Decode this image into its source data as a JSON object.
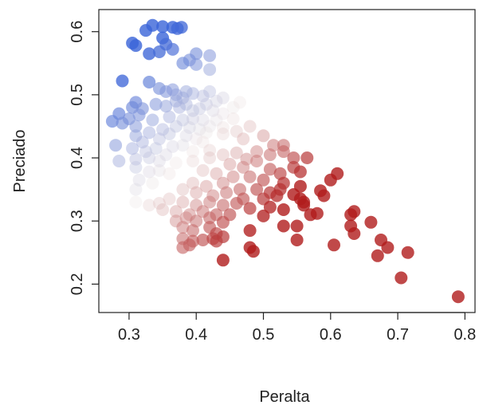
{
  "chart_data": {
    "type": "scatter",
    "xlabel": "Peralta",
    "ylabel": "Preciado",
    "xlim": [
      0.255,
      0.815
    ],
    "ylim": [
      0.155,
      0.635
    ],
    "x_ticks": [
      0.3,
      0.4,
      0.5,
      0.6,
      0.7,
      0.8
    ],
    "y_ticks": [
      0.2,
      0.3,
      0.4,
      0.5,
      0.6
    ],
    "x_tick_labels": [
      "0.3",
      "0.4",
      "0.5",
      "0.6",
      "0.7",
      "0.8"
    ],
    "y_tick_labels": [
      "0.2",
      "0.3",
      "0.4",
      "0.5",
      "0.6"
    ],
    "grid": false,
    "color_low": "#3a64d8",
    "color_high": "#b01c1c",
    "color_mid": "#e8dede",
    "points": [
      [
        0.335,
        0.61
      ],
      [
        0.35,
        0.608
      ],
      [
        0.365,
        0.607
      ],
      [
        0.372,
        0.605
      ],
      [
        0.378,
        0.607
      ],
      [
        0.325,
        0.602
      ],
      [
        0.35,
        0.59
      ],
      [
        0.355,
        0.58
      ],
      [
        0.305,
        0.582
      ],
      [
        0.31,
        0.578
      ],
      [
        0.33,
        0.565
      ],
      [
        0.345,
        0.568
      ],
      [
        0.365,
        0.572
      ],
      [
        0.4,
        0.565
      ],
      [
        0.42,
        0.562
      ],
      [
        0.39,
        0.555
      ],
      [
        0.4,
        0.548
      ],
      [
        0.42,
        0.54
      ],
      [
        0.38,
        0.55
      ],
      [
        0.29,
        0.522
      ],
      [
        0.33,
        0.52
      ],
      [
        0.345,
        0.51
      ],
      [
        0.355,
        0.505
      ],
      [
        0.365,
        0.508
      ],
      [
        0.37,
        0.5
      ],
      [
        0.38,
        0.495
      ],
      [
        0.385,
        0.505
      ],
      [
        0.395,
        0.502
      ],
      [
        0.41,
        0.498
      ],
      [
        0.42,
        0.505
      ],
      [
        0.43,
        0.49
      ],
      [
        0.44,
        0.495
      ],
      [
        0.31,
        0.488
      ],
      [
        0.305,
        0.48
      ],
      [
        0.32,
        0.478
      ],
      [
        0.34,
        0.485
      ],
      [
        0.355,
        0.482
      ],
      [
        0.37,
        0.49
      ],
      [
        0.375,
        0.48
      ],
      [
        0.385,
        0.485
      ],
      [
        0.395,
        0.475
      ],
      [
        0.405,
        0.478
      ],
      [
        0.415,
        0.485
      ],
      [
        0.425,
        0.475
      ],
      [
        0.44,
        0.47
      ],
      [
        0.455,
        0.48
      ],
      [
        0.465,
        0.488
      ],
      [
        0.285,
        0.47
      ],
      [
        0.3,
        0.462
      ],
      [
        0.315,
        0.468
      ],
      [
        0.335,
        0.46
      ],
      [
        0.36,
        0.465
      ],
      [
        0.38,
        0.46
      ],
      [
        0.395,
        0.462
      ],
      [
        0.41,
        0.46
      ],
      [
        0.43,
        0.46
      ],
      [
        0.455,
        0.462
      ],
      [
        0.275,
        0.458
      ],
      [
        0.29,
        0.455
      ],
      [
        0.31,
        0.45
      ],
      [
        0.33,
        0.44
      ],
      [
        0.35,
        0.445
      ],
      [
        0.37,
        0.45
      ],
      [
        0.39,
        0.448
      ],
      [
        0.405,
        0.445
      ],
      [
        0.42,
        0.45
      ],
      [
        0.44,
        0.448
      ],
      [
        0.31,
        0.435
      ],
      [
        0.32,
        0.425
      ],
      [
        0.345,
        0.43
      ],
      [
        0.36,
        0.438
      ],
      [
        0.385,
        0.435
      ],
      [
        0.4,
        0.43
      ],
      [
        0.415,
        0.44
      ],
      [
        0.28,
        0.42
      ],
      [
        0.305,
        0.415
      ],
      [
        0.325,
        0.41
      ],
      [
        0.34,
        0.415
      ],
      [
        0.365,
        0.418
      ],
      [
        0.38,
        0.42
      ],
      [
        0.395,
        0.41
      ],
      [
        0.41,
        0.425
      ],
      [
        0.285,
        0.395
      ],
      [
        0.31,
        0.398
      ],
      [
        0.33,
        0.4
      ],
      [
        0.345,
        0.395
      ],
      [
        0.355,
        0.405
      ],
      [
        0.37,
        0.392
      ],
      [
        0.395,
        0.395
      ],
      [
        0.31,
        0.385
      ],
      [
        0.33,
        0.378
      ],
      [
        0.345,
        0.38
      ],
      [
        0.36,
        0.375
      ],
      [
        0.315,
        0.365
      ],
      [
        0.335,
        0.36
      ],
      [
        0.31,
        0.35
      ],
      [
        0.31,
        0.33
      ],
      [
        0.33,
        0.325
      ],
      [
        0.345,
        0.328
      ],
      [
        0.48,
        0.45
      ],
      [
        0.44,
        0.438
      ],
      [
        0.46,
        0.442
      ],
      [
        0.47,
        0.43
      ],
      [
        0.5,
        0.435
      ],
      [
        0.515,
        0.42
      ],
      [
        0.53,
        0.42
      ],
      [
        0.49,
        0.41
      ],
      [
        0.51,
        0.405
      ],
      [
        0.53,
        0.41
      ],
      [
        0.545,
        0.4
      ],
      [
        0.565,
        0.4
      ],
      [
        0.42,
        0.412
      ],
      [
        0.44,
        0.405
      ],
      [
        0.46,
        0.408
      ],
      [
        0.475,
        0.398
      ],
      [
        0.42,
        0.4
      ],
      [
        0.45,
        0.39
      ],
      [
        0.47,
        0.385
      ],
      [
        0.49,
        0.395
      ],
      [
        0.51,
        0.382
      ],
      [
        0.525,
        0.375
      ],
      [
        0.545,
        0.385
      ],
      [
        0.555,
        0.378
      ],
      [
        0.41,
        0.38
      ],
      [
        0.43,
        0.375
      ],
      [
        0.455,
        0.37
      ],
      [
        0.48,
        0.37
      ],
      [
        0.5,
        0.365
      ],
      [
        0.53,
        0.36
      ],
      [
        0.555,
        0.355
      ],
      [
        0.61,
        0.375
      ],
      [
        0.6,
        0.365
      ],
      [
        0.395,
        0.36
      ],
      [
        0.415,
        0.355
      ],
      [
        0.44,
        0.36
      ],
      [
        0.465,
        0.35
      ],
      [
        0.49,
        0.35
      ],
      [
        0.51,
        0.345
      ],
      [
        0.525,
        0.35
      ],
      [
        0.545,
        0.342
      ],
      [
        0.585,
        0.348
      ],
      [
        0.38,
        0.35
      ],
      [
        0.4,
        0.345
      ],
      [
        0.425,
        0.34
      ],
      [
        0.445,
        0.345
      ],
      [
        0.47,
        0.335
      ],
      [
        0.5,
        0.335
      ],
      [
        0.52,
        0.34
      ],
      [
        0.555,
        0.335
      ],
      [
        0.56,
        0.33
      ],
      [
        0.59,
        0.34
      ],
      [
        0.36,
        0.335
      ],
      [
        0.38,
        0.33
      ],
      [
        0.4,
        0.325
      ],
      [
        0.42,
        0.33
      ],
      [
        0.44,
        0.325
      ],
      [
        0.46,
        0.328
      ],
      [
        0.48,
        0.32
      ],
      [
        0.51,
        0.322
      ],
      [
        0.53,
        0.318
      ],
      [
        0.56,
        0.325
      ],
      [
        0.57,
        0.31
      ],
      [
        0.58,
        0.312
      ],
      [
        0.35,
        0.318
      ],
      [
        0.37,
        0.315
      ],
      [
        0.39,
        0.31
      ],
      [
        0.41,
        0.315
      ],
      [
        0.43,
        0.31
      ],
      [
        0.45,
        0.31
      ],
      [
        0.5,
        0.308
      ],
      [
        0.37,
        0.3
      ],
      [
        0.385,
        0.305
      ],
      [
        0.4,
        0.3
      ],
      [
        0.42,
        0.305
      ],
      [
        0.44,
        0.298
      ],
      [
        0.55,
        0.292
      ],
      [
        0.53,
        0.292
      ],
      [
        0.48,
        0.285
      ],
      [
        0.38,
        0.29
      ],
      [
        0.395,
        0.285
      ],
      [
        0.42,
        0.29
      ],
      [
        0.43,
        0.28
      ],
      [
        0.41,
        0.27
      ],
      [
        0.44,
        0.275
      ],
      [
        0.38,
        0.272
      ],
      [
        0.395,
        0.268
      ],
      [
        0.425,
        0.272
      ],
      [
        0.43,
        0.268
      ],
      [
        0.55,
        0.27
      ],
      [
        0.39,
        0.262
      ],
      [
        0.48,
        0.258
      ],
      [
        0.485,
        0.252
      ],
      [
        0.38,
        0.258
      ],
      [
        0.44,
        0.238
      ],
      [
        0.63,
        0.31
      ],
      [
        0.635,
        0.315
      ],
      [
        0.63,
        0.292
      ],
      [
        0.635,
        0.28
      ],
      [
        0.66,
        0.298
      ],
      [
        0.605,
        0.262
      ],
      [
        0.675,
        0.27
      ],
      [
        0.685,
        0.258
      ],
      [
        0.67,
        0.245
      ],
      [
        0.715,
        0.25
      ],
      [
        0.705,
        0.21
      ],
      [
        0.79,
        0.18
      ]
    ]
  }
}
